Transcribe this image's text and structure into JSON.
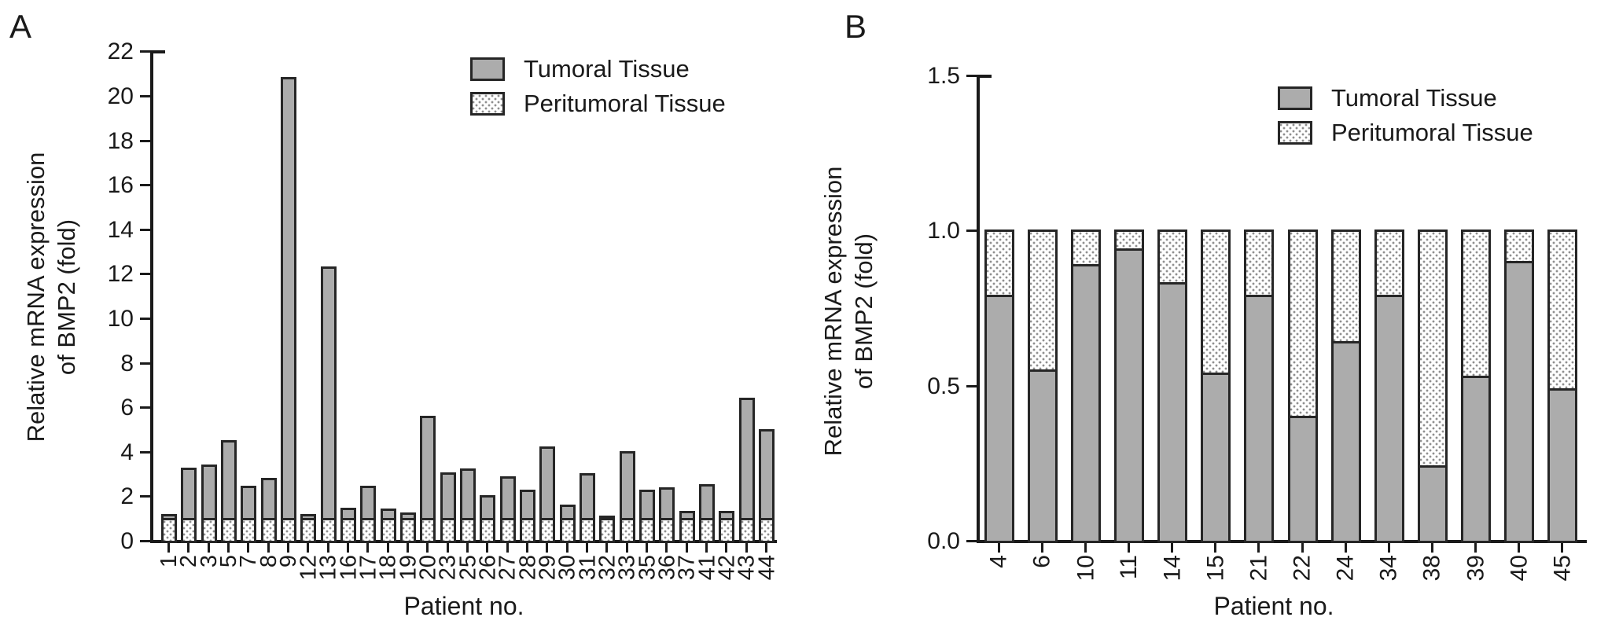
{
  "colors": {
    "bar_fill": "#acacac",
    "bar_border": "#262626",
    "axis": "#1a1a1a",
    "dot": "#8f8f8f",
    "text": "#1a1a1a",
    "background": "#ffffff"
  },
  "chart_data": [
    {
      "panel_label": "A",
      "type": "bar",
      "mode": "overlay",
      "title": "",
      "xlabel": "Patient no.",
      "ylabel": "Relative mRNA expression of BMP2 (fold)",
      "ylabel_lines": [
        "Relative mRNA expression",
        "of BMP2 (fold)"
      ],
      "ylim": [
        0,
        22
      ],
      "ytick_labels": [
        "0",
        "2",
        "4",
        "6",
        "8",
        "10",
        "12",
        "14",
        "16",
        "18",
        "20",
        "22"
      ],
      "grid": false,
      "legend_position": "top-right",
      "categories": [
        "1",
        "2",
        "3",
        "5",
        "7",
        "8",
        "9",
        "12",
        "13",
        "16",
        "17",
        "18",
        "19",
        "20",
        "23",
        "25",
        "26",
        "27",
        "28",
        "29",
        "30",
        "31",
        "32",
        "33",
        "35",
        "36",
        "37",
        "41",
        "42",
        "43",
        "44"
      ],
      "series": [
        {
          "name": "Tumoral Tissue",
          "style": "solid-gray",
          "values": [
            1.15,
            3.25,
            3.4,
            4.5,
            2.45,
            2.8,
            20.8,
            1.15,
            12.3,
            1.45,
            2.45,
            1.4,
            1.25,
            5.6,
            3.05,
            3.2,
            2.0,
            2.85,
            2.25,
            4.2,
            1.6,
            3.0,
            1.1,
            4.0,
            2.25,
            2.35,
            1.3,
            2.5,
            1.3,
            6.4,
            5.0
          ]
        },
        {
          "name": "Peritumoral Tissue",
          "style": "dotted",
          "values": [
            1.0,
            1.0,
            1.0,
            1.0,
            1.0,
            1.0,
            1.0,
            1.0,
            1.0,
            1.0,
            1.0,
            1.0,
            1.0,
            1.0,
            1.0,
            1.0,
            1.0,
            1.0,
            1.0,
            1.0,
            1.0,
            1.0,
            1.0,
            1.0,
            1.0,
            1.0,
            1.0,
            1.0,
            1.0,
            1.0,
            1.0
          ]
        }
      ]
    },
    {
      "panel_label": "B",
      "type": "bar",
      "mode": "stacked",
      "title": "",
      "xlabel": "Patient no.",
      "ylabel": "Relative mRNA expression of BMP2 (fold)",
      "ylabel_lines": [
        "Relative mRNA expression",
        "of BMP2 (fold)"
      ],
      "ylim": [
        0,
        1.5
      ],
      "ytick_labels": [
        "0.0",
        "0.5",
        "1.0",
        "1.5"
      ],
      "grid": false,
      "legend_position": "top-right",
      "categories": [
        "4",
        "6",
        "10",
        "11",
        "14",
        "15",
        "21",
        "22",
        "24",
        "34",
        "38",
        "39",
        "40",
        "45"
      ],
      "series": [
        {
          "name": "Tumoral Tissue",
          "style": "solid-gray",
          "values": [
            0.79,
            0.55,
            0.89,
            0.94,
            0.83,
            0.54,
            0.79,
            0.4,
            0.64,
            0.79,
            0.24,
            0.53,
            0.9,
            0.49
          ]
        },
        {
          "name": "Peritumoral Tissue",
          "style": "dotted",
          "values": [
            0.21,
            0.45,
            0.11,
            0.06,
            0.17,
            0.46,
            0.21,
            0.6,
            0.36,
            0.21,
            0.76,
            0.47,
            0.1,
            0.51
          ]
        }
      ]
    }
  ]
}
